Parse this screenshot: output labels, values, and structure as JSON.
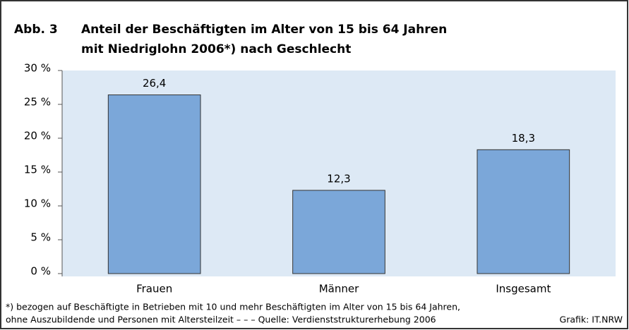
{
  "chart_data": {
    "type": "bar",
    "figure_label": "Abb. 3",
    "title": [
      "Anteil der Beschäftigten im Alter von 15 bis 64 Jahren",
      "mit Niedriglohn 2006*) nach Geschlecht"
    ],
    "categories": [
      "Frauen",
      "Männer",
      "Insgesamt"
    ],
    "values": [
      26.4,
      12.3,
      18.3
    ],
    "value_labels": [
      "26,4",
      "12,3",
      "18,3"
    ],
    "color": "#7ba7d9",
    "ylim": [
      0,
      30
    ],
    "yticks": [
      {
        "value": 0,
        "label": "0 %"
      },
      {
        "value": 5,
        "label": "5 %"
      },
      {
        "value": 10,
        "label": "10 %"
      },
      {
        "value": 15,
        "label": "15 %"
      },
      {
        "value": 20,
        "label": "20 %"
      },
      {
        "value": 25,
        "label": "25 %"
      },
      {
        "value": 30,
        "label": "30 %"
      }
    ],
    "grid": false,
    "footnote": [
      "*) bezogen auf Beschäftigte in Betrieben mit 10 und mehr Beschäftigten im Alter von 15 bis 64 Jahren,",
      "ohne Auszubildende und Personen mit Altersteilzeit – – – Quelle: Verdienststrukturerhebung 2006"
    ],
    "source": "Grafik: IT.NRW"
  }
}
